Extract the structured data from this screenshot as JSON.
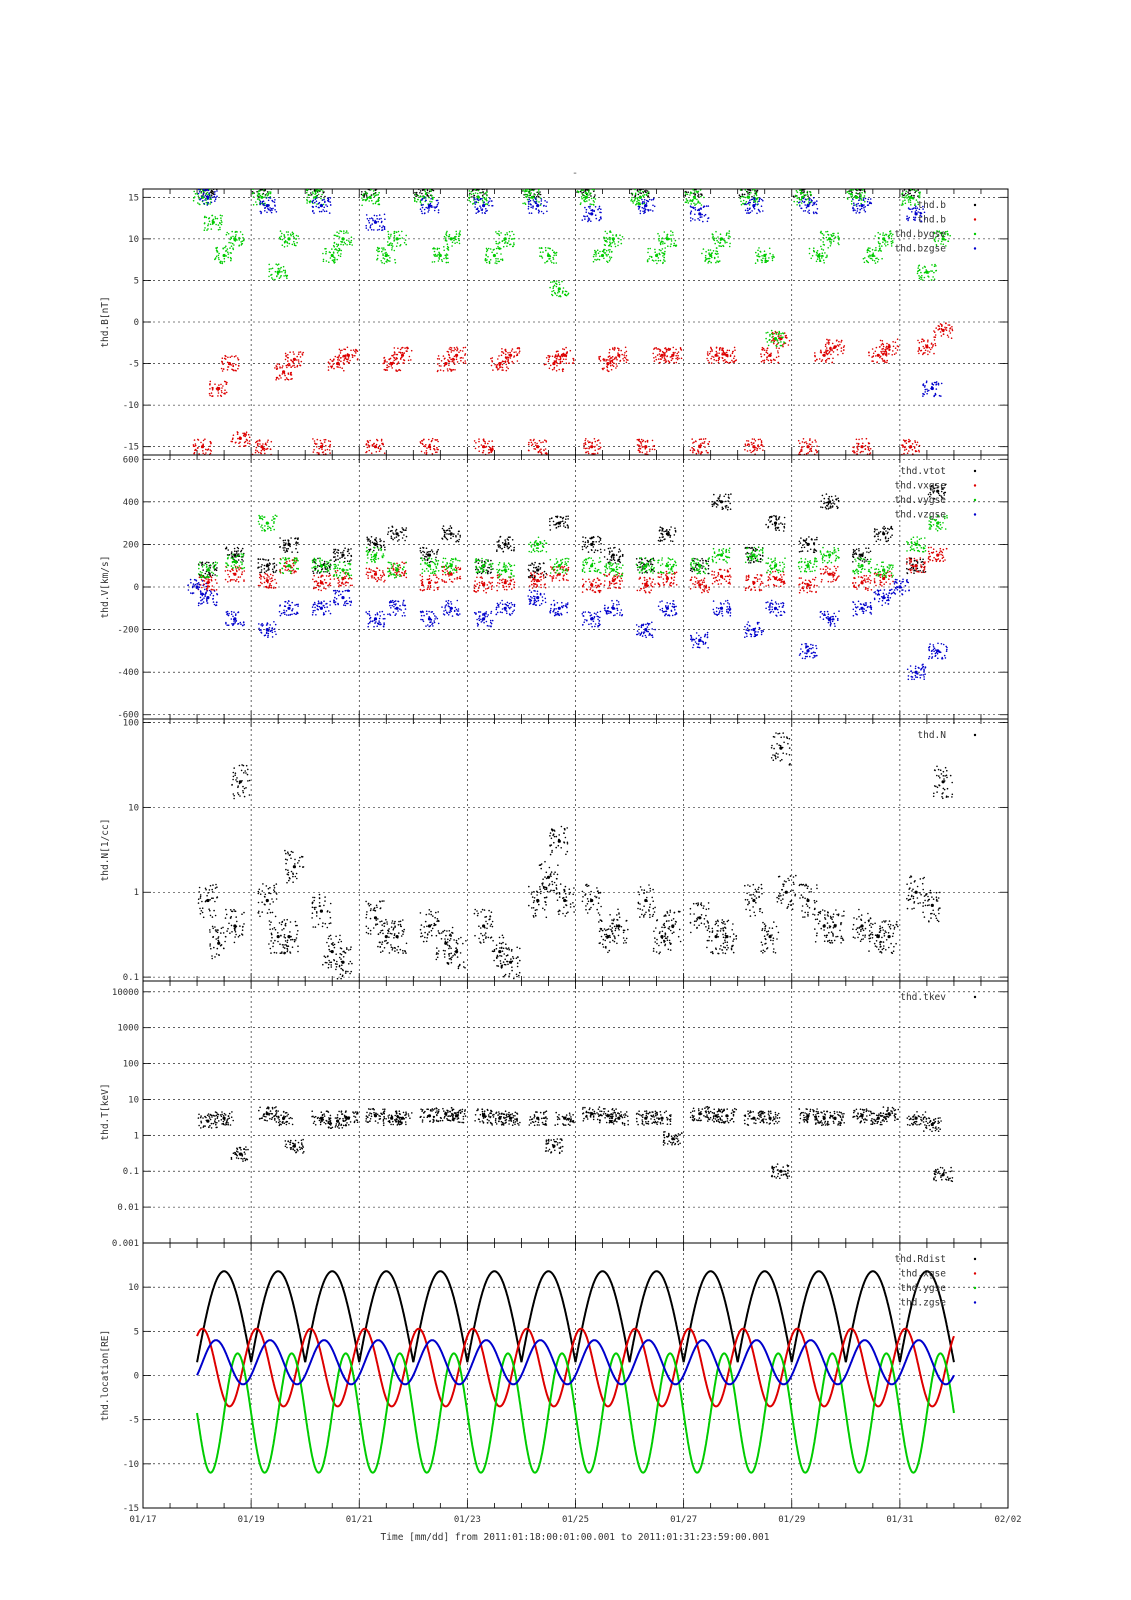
{
  "title": "-",
  "x_axis": {
    "tick_labels": [
      "01/17",
      "01/19",
      "01/21",
      "01/23",
      "01/25",
      "01/27",
      "01/29",
      "01/31",
      "02/02"
    ],
    "tick_day_of_jan": [
      17,
      19,
      21,
      23,
      25,
      27,
      29,
      31,
      33
    ],
    "range_day_of_jan": [
      17,
      33
    ],
    "label": "Time [mm/dd]  from 2011:01:18:00:01:00.001  to  2011:01:31:23:59:00.001"
  },
  "colors": {
    "black": "#000000",
    "red": "#dd0000",
    "green": "#00cc00",
    "blue": "#0000cc",
    "grid": "#000000"
  },
  "chart_data": [
    {
      "type": "scatter",
      "ylabel": "thd.B[nT]",
      "scale": "linear",
      "ylim": [
        -16,
        16
      ],
      "yticks": [
        15,
        10,
        5,
        0,
        -5,
        -10,
        -15
      ],
      "ytick_labels": [
        "15",
        "10",
        "5",
        "0",
        "-5",
        "-10",
        "-15"
      ],
      "legend_position": "top-right",
      "series": [
        {
          "name": "thd.b",
          "color": "#000000",
          "x": [
            18.2,
            19.2,
            20.2,
            21.2,
            22.2,
            23.2,
            24.2,
            25.2,
            26.2,
            27.2,
            28.2,
            29.2,
            30.2,
            31.2
          ],
          "y": [
            16,
            16,
            16,
            16,
            16,
            16,
            16,
            16,
            16,
            16,
            16,
            16,
            16,
            16
          ]
        },
        {
          "name": "thd.b",
          "color": "#dd0000",
          "x": [
            18.1,
            18.4,
            18.6,
            18.8,
            19.2,
            19.6,
            19.8,
            20.3,
            20.6,
            20.8,
            21.3,
            21.6,
            21.8,
            22.3,
            22.6,
            22.8,
            23.3,
            23.6,
            23.8,
            24.3,
            24.6,
            24.8,
            25.3,
            25.6,
            25.8,
            26.3,
            26.6,
            26.8,
            27.3,
            27.6,
            27.8,
            28.3,
            28.6,
            28.8,
            29.3,
            29.6,
            29.8,
            30.3,
            30.6,
            30.8,
            31.2,
            31.5,
            31.8
          ],
          "y": [
            -15,
            -8,
            -5,
            -14,
            -15,
            -6,
            -4.5,
            -15,
            -5,
            -4,
            -15,
            -5,
            -4,
            -15,
            -5,
            -4,
            -15,
            -5,
            -4,
            -15,
            -5,
            -4,
            -15,
            -5,
            -4,
            -15,
            -4,
            -4,
            -15,
            -4,
            -4,
            -15,
            -4,
            -2,
            -15,
            -4,
            -3,
            -15,
            -4,
            -3,
            -15,
            -3,
            -1
          ]
        },
        {
          "name": "thd.bygse",
          "color": "#00cc00",
          "x": [
            18.1,
            18.3,
            18.5,
            18.7,
            19.2,
            19.5,
            19.7,
            20.2,
            20.5,
            20.7,
            21.2,
            21.5,
            21.7,
            22.2,
            22.5,
            22.7,
            23.2,
            23.5,
            23.7,
            24.2,
            24.5,
            24.7,
            25.2,
            25.5,
            25.7,
            26.2,
            26.5,
            26.7,
            27.2,
            27.5,
            27.7,
            28.2,
            28.5,
            28.7,
            29.2,
            29.5,
            29.7,
            30.2,
            30.5,
            30.7,
            31.2,
            31.5,
            31.8
          ],
          "y": [
            15,
            12,
            8,
            10,
            15,
            6,
            10,
            15,
            8,
            10,
            15,
            8,
            10,
            15,
            8,
            10,
            15,
            8,
            10,
            15,
            8,
            4,
            15,
            8,
            10,
            15,
            8,
            10,
            15,
            8,
            10,
            15,
            8,
            -2,
            15,
            8,
            10,
            15,
            8,
            10,
            15,
            6,
            10
          ]
        },
        {
          "name": "thd.bzgse",
          "color": "#0000cc",
          "x": [
            18.2,
            19.3,
            20.3,
            21.3,
            22.3,
            23.3,
            24.3,
            25.3,
            26.3,
            27.3,
            28.3,
            29.3,
            30.3,
            31.3,
            31.6
          ],
          "y": [
            15,
            14,
            14,
            12,
            14,
            14,
            14,
            13,
            14,
            13,
            14,
            14,
            14,
            13,
            -8
          ]
        }
      ]
    },
    {
      "type": "scatter",
      "ylabel": "thd.V[km/s]",
      "scale": "linear",
      "ylim": [
        -620,
        620
      ],
      "yticks": [
        600,
        400,
        200,
        0,
        -200,
        -400,
        -600
      ],
      "ytick_labels": [
        "600",
        "400",
        "200",
        "0",
        "-200",
        "-400",
        "-600"
      ],
      "legend_position": "top-right",
      "series": [
        {
          "name": "thd.vtot",
          "color": "#000000",
          "x": [
            18.2,
            18.7,
            19.3,
            19.7,
            20.3,
            20.7,
            21.3,
            21.7,
            22.3,
            22.7,
            23.3,
            23.7,
            24.3,
            24.7,
            25.3,
            25.7,
            26.3,
            26.7,
            27.3,
            27.7,
            28.3,
            28.7,
            29.3,
            29.7,
            30.3,
            30.7,
            31.3,
            31.7
          ],
          "y": [
            80,
            150,
            100,
            200,
            100,
            150,
            200,
            250,
            150,
            250,
            100,
            200,
            80,
            300,
            200,
            150,
            100,
            250,
            100,
            400,
            150,
            300,
            200,
            400,
            150,
            250,
            100,
            450
          ]
        },
        {
          "name": "thd.vxgse",
          "color": "#dd0000",
          "x": [
            18.2,
            18.7,
            19.3,
            19.7,
            20.3,
            20.7,
            21.3,
            21.7,
            22.3,
            22.7,
            23.3,
            23.7,
            24.3,
            24.7,
            25.3,
            25.7,
            26.3,
            26.7,
            27.3,
            27.7,
            28.3,
            28.7,
            29.3,
            29.7,
            30.3,
            30.7,
            31.3,
            31.7
          ],
          "y": [
            20,
            60,
            30,
            100,
            20,
            40,
            60,
            80,
            20,
            60,
            10,
            20,
            30,
            60,
            10,
            30,
            10,
            40,
            10,
            50,
            20,
            40,
            10,
            60,
            20,
            40,
            100,
            150
          ]
        },
        {
          "name": "thd.vygse",
          "color": "#00cc00",
          "x": [
            18.2,
            18.7,
            19.3,
            19.7,
            20.3,
            20.7,
            21.3,
            21.7,
            22.3,
            22.7,
            23.3,
            23.7,
            24.3,
            24.7,
            25.3,
            25.7,
            26.3,
            26.7,
            27.3,
            27.7,
            28.3,
            28.7,
            29.3,
            29.7,
            30.3,
            30.7,
            31.3,
            31.7
          ],
          "y": [
            80,
            120,
            300,
            100,
            100,
            80,
            150,
            80,
            100,
            100,
            100,
            80,
            200,
            100,
            100,
            80,
            100,
            100,
            100,
            150,
            150,
            100,
            100,
            150,
            100,
            80,
            200,
            300
          ]
        },
        {
          "name": "thd.vzgse",
          "color": "#0000cc",
          "x": [
            18.0,
            18.2,
            18.7,
            19.3,
            19.7,
            20.3,
            20.7,
            21.3,
            21.7,
            22.3,
            22.7,
            23.3,
            23.7,
            24.3,
            24.7,
            25.3,
            25.7,
            26.3,
            26.7,
            27.3,
            27.7,
            28.3,
            28.7,
            29.3,
            29.7,
            30.3,
            30.7,
            31.0,
            31.3,
            31.7
          ],
          "y": [
            0,
            -50,
            -150,
            -200,
            -100,
            -100,
            -50,
            -150,
            -100,
            -150,
            -100,
            -150,
            -100,
            -50,
            -100,
            -150,
            -100,
            -200,
            -100,
            -250,
            -100,
            -200,
            -100,
            -300,
            -150,
            -100,
            -50,
            0,
            -400,
            -300
          ]
        }
      ]
    },
    {
      "type": "scatter",
      "ylabel": "thd.N[1/cc]",
      "scale": "log",
      "ylim": [
        0.09,
        110
      ],
      "yticks": [
        100,
        10,
        1,
        0.1
      ],
      "ytick_labels": [
        "100",
        "10",
        "1",
        "0.1"
      ],
      "legend_position": "top-right",
      "series": [
        {
          "name": "thd.N",
          "color": "#000000",
          "x": [
            18.2,
            18.4,
            18.7,
            18.8,
            19.3,
            19.5,
            19.7,
            19.8,
            20.3,
            20.5,
            20.7,
            21.3,
            21.5,
            21.7,
            22.3,
            22.6,
            22.8,
            23.3,
            23.6,
            23.8,
            24.3,
            24.5,
            24.7,
            24.8,
            25.3,
            25.6,
            25.8,
            26.3,
            26.6,
            26.8,
            27.3,
            27.6,
            27.8,
            28.3,
            28.6,
            28.8,
            28.9,
            29.3,
            29.6,
            29.8,
            30.3,
            30.6,
            30.8,
            31.3,
            31.6,
            31.8
          ],
          "y": [
            0.8,
            0.25,
            0.4,
            20,
            0.8,
            0.3,
            0.3,
            2,
            0.6,
            0.2,
            0.15,
            0.5,
            0.3,
            0.3,
            0.4,
            0.25,
            0.2,
            0.4,
            0.2,
            0.15,
            0.8,
            1.5,
            4,
            0.8,
            0.8,
            0.3,
            0.4,
            0.8,
            0.3,
            0.4,
            0.5,
            0.3,
            0.3,
            0.8,
            0.3,
            50,
            1,
            0.8,
            0.4,
            0.4,
            0.4,
            0.3,
            0.3,
            1,
            0.7,
            20
          ]
        }
      ]
    },
    {
      "type": "scatter",
      "ylabel": "thd.T[keV]",
      "scale": "log",
      "ylim": [
        0.001,
        20000
      ],
      "yticks": [
        10000,
        1000,
        100,
        10,
        1,
        0.1,
        0.01,
        0.001
      ],
      "ytick_labels": [
        "10000",
        "1000",
        "100",
        "10",
        "1",
        "0.1",
        "0.01",
        "0.001"
      ],
      "legend_position": "top-right",
      "series": [
        {
          "name": "thd.tkev",
          "color": "#000000",
          "x": [
            18.2,
            18.5,
            18.8,
            19.3,
            19.6,
            19.8,
            20.3,
            20.6,
            20.8,
            21.3,
            21.6,
            21.8,
            22.3,
            22.6,
            22.8,
            23.3,
            23.6,
            23.8,
            24.3,
            24.6,
            24.8,
            25.3,
            25.6,
            25.8,
            26.3,
            26.6,
            26.8,
            27.3,
            27.6,
            27.8,
            28.3,
            28.6,
            28.8,
            29.3,
            29.6,
            29.8,
            30.3,
            30.6,
            30.8,
            31.3,
            31.6,
            31.8
          ],
          "y": [
            2.5,
            3,
            0.3,
            4,
            3,
            0.5,
            3,
            2.5,
            3,
            3.5,
            3,
            3,
            3.5,
            4,
            3.5,
            3.5,
            3,
            3,
            3,
            0.5,
            3,
            4,
            3.5,
            3,
            3,
            3,
            0.8,
            4,
            3.5,
            3.5,
            3,
            3,
            0.1,
            3.5,
            3,
            3,
            3.5,
            3,
            4,
            3,
            2,
            0.08
          ]
        }
      ]
    },
    {
      "type": "line",
      "ylabel": "thd.location[RE]",
      "scale": "linear",
      "ylim": [
        -15,
        15
      ],
      "yticks": [
        10,
        5,
        0,
        -5,
        -10,
        -15
      ],
      "ytick_labels": [
        "10",
        "5",
        "0",
        "-5",
        "-10",
        "-15"
      ],
      "legend_position": "top-right",
      "orbit_period_days": 1.0,
      "x_start": 18.0,
      "x_end": 32.0,
      "series": [
        {
          "name": "thd.Rdist",
          "color": "#000000",
          "min": 1.5,
          "max": 11.8
        },
        {
          "name": "thd.xgse",
          "color": "#dd0000",
          "min": -3.5,
          "max": 5.3
        },
        {
          "name": "thd.ygse",
          "color": "#00cc00",
          "min": -11,
          "max": 2.5
        },
        {
          "name": "thd.zgse",
          "color": "#0000cc",
          "min": -1,
          "max": 4
        }
      ]
    }
  ]
}
